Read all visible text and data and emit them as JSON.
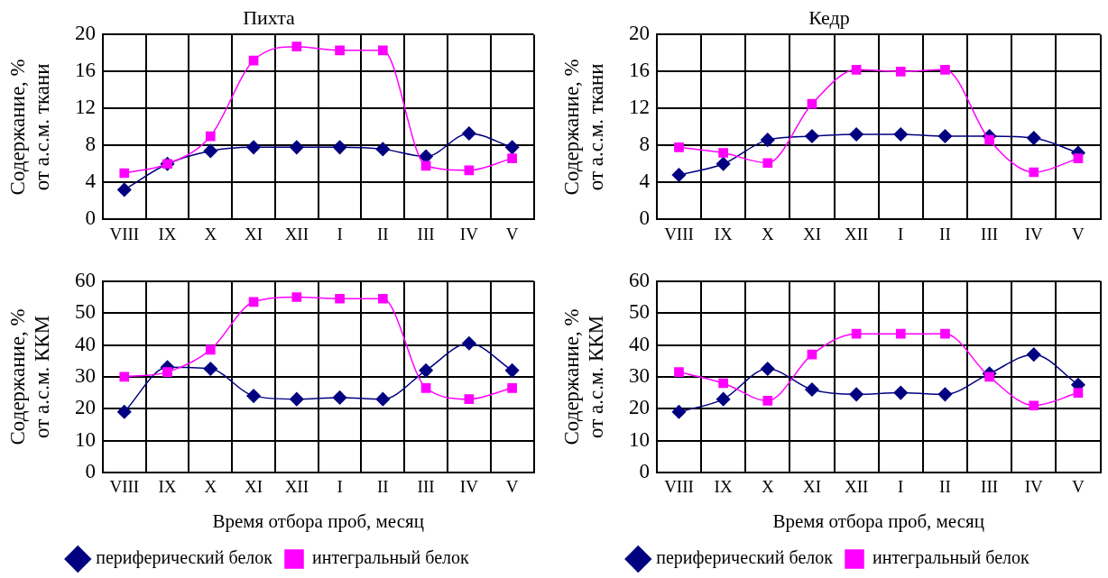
{
  "chart_data": [
    {
      "type": "line",
      "title": "Пихта",
      "ylabel": "Содержание, %\nот а.с.м. ткани",
      "categories": [
        "VIII",
        "IX",
        "X",
        "XI",
        "XII",
        "I",
        "II",
        "III",
        "IV",
        "V"
      ],
      "ylim": [
        0,
        20
      ],
      "yticks": [
        0,
        4,
        8,
        12,
        16,
        20
      ],
      "grid": true,
      "legend": false,
      "series": [
        {
          "color": "#000080",
          "marker": "diamond",
          "values": [
            3.2,
            6.0,
            7.4,
            7.8,
            7.8,
            7.8,
            7.6,
            6.8,
            9.3,
            7.8
          ]
        },
        {
          "color": "#ff00ff",
          "marker": "square",
          "values": [
            5.0,
            6.0,
            9.0,
            17.2,
            18.7,
            18.3,
            18.3,
            5.8,
            5.3,
            6.6
          ]
        }
      ]
    },
    {
      "type": "line",
      "title": "Кедр",
      "ylabel": "Содержание, %\nот а.с.м. ткани",
      "categories": [
        "VIII",
        "IX",
        "X",
        "XI",
        "XII",
        "I",
        "II",
        "III",
        "IV",
        "V"
      ],
      "ylim": [
        0,
        20
      ],
      "yticks": [
        0,
        4,
        8,
        12,
        16,
        20
      ],
      "grid": true,
      "legend": false,
      "series": [
        {
          "color": "#000080",
          "marker": "diamond",
          "values": [
            4.8,
            6.0,
            8.6,
            9.0,
            9.2,
            9.2,
            9.0,
            9.0,
            8.8,
            7.2
          ]
        },
        {
          "color": "#ff00ff",
          "marker": "square",
          "values": [
            7.8,
            7.2,
            6.1,
            12.5,
            16.2,
            16.0,
            16.2,
            8.6,
            5.1,
            6.6
          ]
        }
      ]
    },
    {
      "type": "line",
      "xlabel": "Время отбора проб, месяц",
      "ylabel": "Содержание, %\nот а.с.м. ККМ",
      "categories": [
        "VIII",
        "IX",
        "X",
        "XI",
        "XII",
        "I",
        "II",
        "III",
        "IV",
        "V"
      ],
      "ylim": [
        0,
        60
      ],
      "yticks": [
        0,
        10,
        20,
        30,
        40,
        50,
        60
      ],
      "grid": true,
      "legend": "bottom",
      "series": [
        {
          "name": "периферический белок",
          "color": "#000080",
          "marker": "diamond",
          "values": [
            19,
            33,
            32.5,
            24,
            23,
            23.5,
            23,
            32,
            40.5,
            32
          ]
        },
        {
          "name": "интегральный белок",
          "color": "#ff00ff",
          "marker": "square",
          "values": [
            30,
            31.5,
            38.5,
            53.5,
            55,
            54.5,
            54.5,
            26.5,
            23,
            26.5
          ]
        }
      ]
    },
    {
      "type": "line",
      "xlabel": "Время отбора проб, месяц",
      "ylabel": "Содержание, %\nот а.с.м. ККМ",
      "categories": [
        "VIII",
        "IX",
        "X",
        "XI",
        "XII",
        "I",
        "II",
        "III",
        "IV",
        "V"
      ],
      "ylim": [
        0,
        60
      ],
      "yticks": [
        0,
        10,
        20,
        30,
        40,
        50,
        60
      ],
      "grid": true,
      "legend": "bottom",
      "series": [
        {
          "name": "периферический белок",
          "color": "#000080",
          "marker": "diamond",
          "values": [
            19,
            23,
            32.5,
            26,
            24.5,
            25,
            24.5,
            31,
            37,
            27.5
          ]
        },
        {
          "name": "интегральный белок",
          "color": "#ff00ff",
          "marker": "square",
          "values": [
            31.5,
            28,
            22.5,
            37,
            43.5,
            43.5,
            43.5,
            30,
            21,
            25
          ]
        }
      ]
    }
  ]
}
